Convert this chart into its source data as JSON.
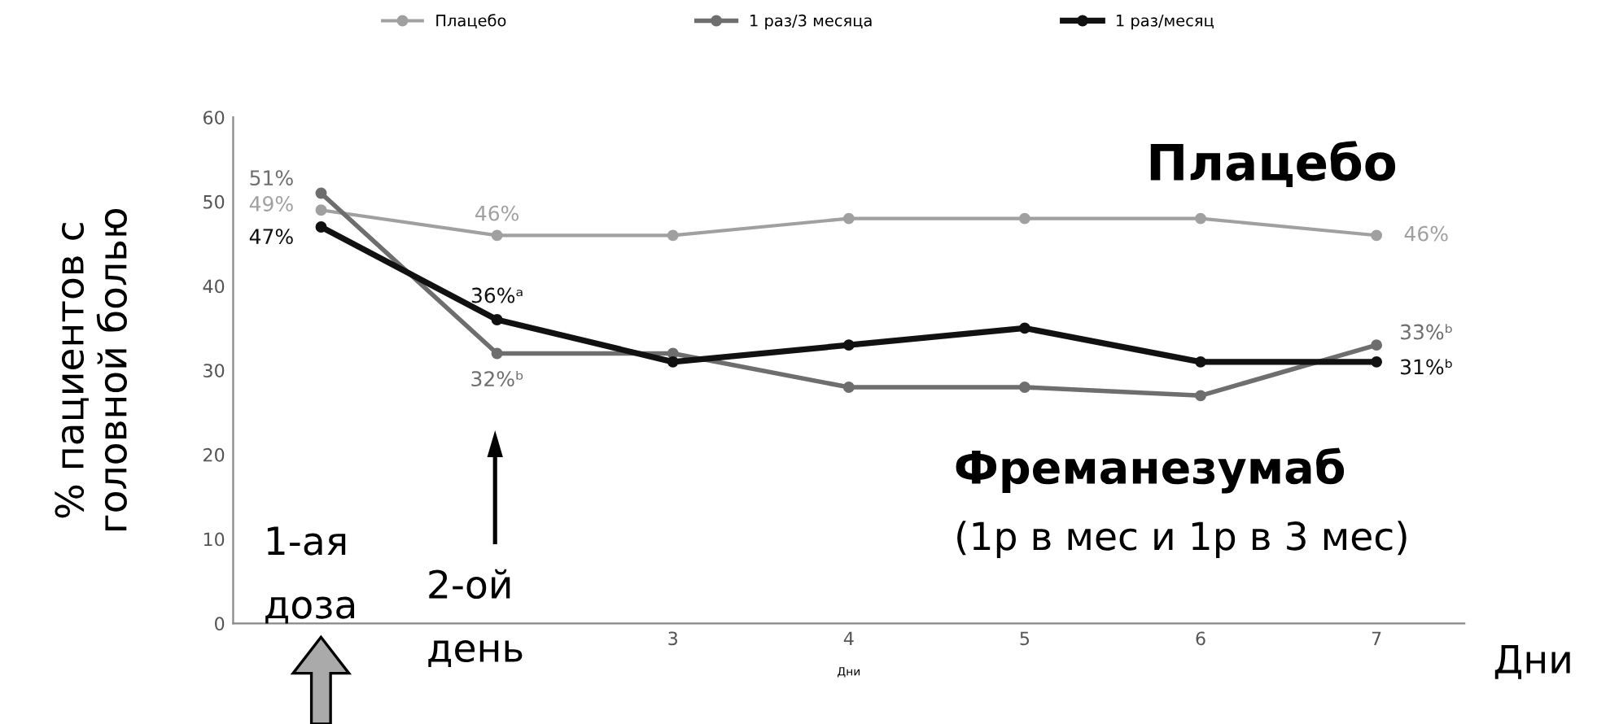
{
  "chart_data": {
    "type": "line",
    "ylabel": "% пациентов с\nголовной болью",
    "xlabel": "Дни",
    "categories": [
      null,
      null,
      "3",
      "4",
      "5",
      "6",
      "7"
    ],
    "series": [
      {
        "name": "Плацебо",
        "color": "#a0a0a0",
        "values": [
          49,
          46,
          46,
          48,
          48,
          48,
          46
        ],
        "value_labels": [
          "49%",
          "46%",
          null,
          null,
          null,
          null,
          "46%"
        ]
      },
      {
        "name": "1 раз/3 месяца",
        "color": "#6e6e6e",
        "values": [
          51,
          32,
          32,
          28,
          28,
          27,
          33
        ],
        "value_labels": [
          "51%",
          "32%ᵇ",
          null,
          null,
          null,
          null,
          "33%ᵇ"
        ]
      },
      {
        "name": "1 раз/месяц",
        "color": "#111111",
        "values": [
          47,
          36,
          31,
          33,
          35,
          31,
          31
        ],
        "value_labels": [
          "47%",
          "36%ᵃ",
          null,
          null,
          null,
          null,
          "31%ᵇ"
        ]
      }
    ],
    "ylim": [
      0,
      60
    ],
    "yticks": [
      0,
      10,
      20,
      30,
      40,
      50,
      60
    ],
    "grid": false,
    "legend": "top",
    "marker": "circle",
    "line_style": "solid",
    "annotations": [
      "Плацебо",
      "Фреманезумаб",
      "(1р в мес и 1р в 3 мес)",
      "1-ая\nдоза",
      "2-ой\nдень",
      "Дни"
    ]
  }
}
